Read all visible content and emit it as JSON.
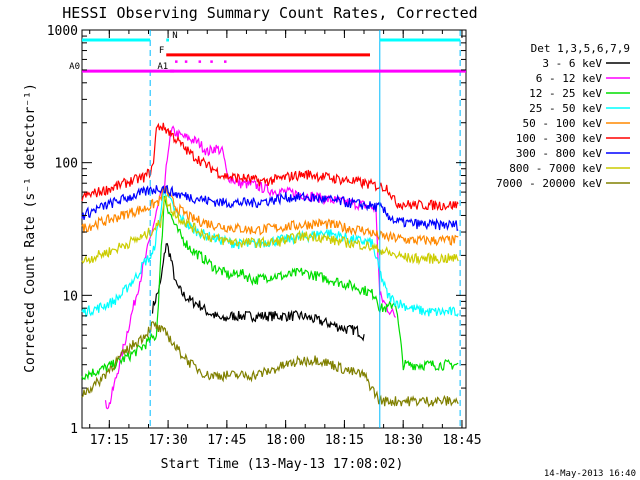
{
  "chart_data": {
    "type": "line",
    "title": "HESSI Observing Summary Count Rates, Corrected",
    "xlabel": "Start Time (13-May-13 17:08:02)",
    "ylabel": "Corrected Count Rate (s⁻¹ detector⁻¹)",
    "y_scale": "log",
    "ylim": [
      1,
      1000
    ],
    "xlim_minutes_from_start": [
      0,
      98
    ],
    "x_ticks": [
      {
        "label": "17:15",
        "t": 6.97
      },
      {
        "label": "17:30",
        "t": 21.97
      },
      {
        "label": "17:45",
        "t": 36.97
      },
      {
        "label": "18:00",
        "t": 51.97
      },
      {
        "label": "18:15",
        "t": 66.97
      },
      {
        "label": "18:30",
        "t": 81.97
      },
      {
        "label": "18:45",
        "t": 96.97
      }
    ],
    "y_ticks": [
      {
        "label": "1",
        "v": 1
      },
      {
        "label": "10",
        "v": 10
      },
      {
        "label": "100",
        "v": 100
      },
      {
        "label": "1000",
        "v": 1000
      }
    ],
    "legend_title": "Det 1,3,5,6,7,9",
    "legend_position": "right",
    "series": [
      {
        "name": "3 - 6 keV",
        "color": "#000000",
        "points": [
          [
            17,
            null
          ],
          [
            18,
            8
          ],
          [
            20,
            12
          ],
          [
            21.5,
            25
          ],
          [
            22.5,
            20
          ],
          [
            24,
            12
          ],
          [
            26,
            10
          ],
          [
            28,
            9
          ],
          [
            30,
            8.5
          ],
          [
            32,
            7.5
          ],
          [
            34,
            7
          ],
          [
            36,
            6.5
          ],
          [
            38,
            7
          ],
          [
            40,
            7
          ],
          [
            44,
            7
          ],
          [
            48,
            7
          ],
          [
            52,
            7
          ],
          [
            56,
            7
          ],
          [
            60,
            6.5
          ],
          [
            64,
            6
          ],
          [
            68,
            5.5
          ],
          [
            70,
            5.5
          ],
          [
            72,
            5
          ]
        ]
      },
      {
        "name": "6 - 12 keV",
        "color": "#ff00ff",
        "points": [
          [
            6,
            1.5
          ],
          [
            7,
            1.5
          ],
          [
            20,
            55
          ],
          [
            21,
            60
          ],
          [
            22,
            130
          ],
          [
            23,
            175
          ],
          [
            25,
            160
          ],
          [
            28,
            150
          ],
          [
            30,
            140
          ],
          [
            32,
            120
          ],
          [
            34,
            130
          ],
          [
            36,
            120
          ],
          [
            37,
            80
          ],
          [
            40,
            70
          ],
          [
            44,
            68
          ],
          [
            48,
            62
          ],
          [
            52,
            60
          ],
          [
            56,
            58
          ],
          [
            60,
            55
          ],
          [
            64,
            52
          ],
          [
            68,
            50
          ],
          [
            72,
            48
          ],
          [
            75,
            45
          ],
          [
            76,
            10
          ],
          [
            78,
            8
          ],
          [
            80,
            7
          ]
        ]
      },
      {
        "name": "12 - 25 keV",
        "color": "#00dd00",
        "points": [
          [
            0,
            2.5
          ],
          [
            4,
            2.7
          ],
          [
            8,
            3
          ],
          [
            12,
            3.5
          ],
          [
            15,
            4
          ],
          [
            17,
            4.5
          ],
          [
            19,
            5
          ],
          [
            21,
            55
          ],
          [
            22,
            45
          ],
          [
            24,
            32
          ],
          [
            26,
            26
          ],
          [
            28,
            22
          ],
          [
            30,
            20
          ],
          [
            32,
            18
          ],
          [
            34,
            16
          ],
          [
            36,
            15
          ],
          [
            38,
            14
          ],
          [
            40,
            15
          ],
          [
            44,
            13
          ],
          [
            48,
            14
          ],
          [
            52,
            14
          ],
          [
            56,
            15
          ],
          [
            60,
            14
          ],
          [
            64,
            13
          ],
          [
            68,
            12
          ],
          [
            72,
            11
          ],
          [
            75,
            10
          ],
          [
            76,
            8
          ],
          [
            78,
            8
          ],
          [
            80,
            9
          ],
          [
            82,
            3
          ],
          [
            88,
            3
          ],
          [
            96,
            3
          ]
        ]
      },
      {
        "name": "25 - 50 keV",
        "color": "#00ffff",
        "points": [
          [
            0,
            7.5
          ],
          [
            4,
            8
          ],
          [
            8,
            9
          ],
          [
            10,
            10
          ],
          [
            12,
            12
          ],
          [
            14,
            14
          ],
          [
            16,
            18
          ],
          [
            18,
            20
          ],
          [
            20,
            40
          ],
          [
            21,
            65
          ],
          [
            22,
            55
          ],
          [
            24,
            42
          ],
          [
            26,
            36
          ],
          [
            28,
            32
          ],
          [
            30,
            30
          ],
          [
            32,
            28
          ],
          [
            34,
            27
          ],
          [
            36,
            26
          ],
          [
            38,
            25
          ],
          [
            42,
            24
          ],
          [
            46,
            25
          ],
          [
            50,
            26
          ],
          [
            54,
            27
          ],
          [
            58,
            28
          ],
          [
            62,
            30
          ],
          [
            66,
            28
          ],
          [
            70,
            26
          ],
          [
            74,
            25
          ],
          [
            76,
            15
          ],
          [
            78,
            10
          ],
          [
            80,
            9
          ],
          [
            84,
            8
          ],
          [
            88,
            7.5
          ],
          [
            92,
            7.5
          ],
          [
            96,
            7.5
          ]
        ]
      },
      {
        "name": "50 - 100 keV",
        "color": "#ff8800",
        "points": [
          [
            0,
            32
          ],
          [
            4,
            35
          ],
          [
            8,
            38
          ],
          [
            12,
            42
          ],
          [
            16,
            45
          ],
          [
            20,
            52
          ],
          [
            21,
            65
          ],
          [
            22,
            58
          ],
          [
            24,
            46
          ],
          [
            26,
            42
          ],
          [
            28,
            38
          ],
          [
            32,
            35
          ],
          [
            36,
            33
          ],
          [
            40,
            32
          ],
          [
            44,
            31
          ],
          [
            48,
            32
          ],
          [
            52,
            33
          ],
          [
            56,
            34
          ],
          [
            60,
            35
          ],
          [
            64,
            34
          ],
          [
            68,
            32
          ],
          [
            72,
            31
          ],
          [
            76,
            28
          ],
          [
            80,
            27
          ],
          [
            84,
            26
          ],
          [
            88,
            26
          ],
          [
            92,
            26
          ],
          [
            96,
            26
          ]
        ]
      },
      {
        "name": "100 - 300 keV",
        "color": "#ff0000",
        "points": [
          [
            0,
            55
          ],
          [
            4,
            60
          ],
          [
            8,
            65
          ],
          [
            12,
            72
          ],
          [
            16,
            78
          ],
          [
            18,
            90
          ],
          [
            19,
            180
          ],
          [
            20,
            190
          ],
          [
            22,
            175
          ],
          [
            24,
            150
          ],
          [
            26,
            130
          ],
          [
            28,
            115
          ],
          [
            30,
            105
          ],
          [
            32,
            95
          ],
          [
            34,
            88
          ],
          [
            36,
            80
          ],
          [
            38,
            78
          ],
          [
            42,
            76
          ],
          [
            46,
            72
          ],
          [
            50,
            75
          ],
          [
            54,
            80
          ],
          [
            58,
            82
          ],
          [
            62,
            78
          ],
          [
            66,
            75
          ],
          [
            70,
            72
          ],
          [
            74,
            68
          ],
          [
            78,
            65
          ],
          [
            80,
            50
          ],
          [
            84,
            48
          ],
          [
            88,
            48
          ],
          [
            92,
            48
          ],
          [
            96,
            48
          ]
        ]
      },
      {
        "name": "300 - 800 keV",
        "color": "#0000ff",
        "points": [
          [
            0,
            40
          ],
          [
            4,
            45
          ],
          [
            8,
            50
          ],
          [
            12,
            55
          ],
          [
            16,
            60
          ],
          [
            20,
            65
          ],
          [
            22,
            62
          ],
          [
            24,
            58
          ],
          [
            28,
            55
          ],
          [
            32,
            52
          ],
          [
            36,
            50
          ],
          [
            40,
            50
          ],
          [
            44,
            50
          ],
          [
            48,
            52
          ],
          [
            52,
            55
          ],
          [
            56,
            55
          ],
          [
            60,
            54
          ],
          [
            64,
            52
          ],
          [
            68,
            50
          ],
          [
            72,
            48
          ],
          [
            76,
            46
          ],
          [
            80,
            36
          ],
          [
            84,
            35
          ],
          [
            88,
            34
          ],
          [
            92,
            34
          ],
          [
            96,
            34
          ]
        ]
      },
      {
        "name": "800 - 7000 keV",
        "color": "#cccc00",
        "points": [
          [
            0,
            18
          ],
          [
            4,
            20
          ],
          [
            8,
            22
          ],
          [
            12,
            25
          ],
          [
            16,
            28
          ],
          [
            20,
            35
          ],
          [
            21,
            55
          ],
          [
            22,
            48
          ],
          [
            24,
            40
          ],
          [
            28,
            33
          ],
          [
            32,
            28
          ],
          [
            36,
            26
          ],
          [
            40,
            25
          ],
          [
            44,
            25
          ],
          [
            48,
            25
          ],
          [
            52,
            26
          ],
          [
            56,
            28
          ],
          [
            60,
            28
          ],
          [
            64,
            26
          ],
          [
            68,
            25
          ],
          [
            72,
            24
          ],
          [
            76,
            22
          ],
          [
            80,
            20
          ],
          [
            84,
            19
          ],
          [
            88,
            19
          ],
          [
            92,
            19
          ],
          [
            96,
            19
          ]
        ]
      },
      {
        "name": "7000 - 20000 keV",
        "color": "#808000",
        "points": [
          [
            0,
            1.8
          ],
          [
            4,
            2.2
          ],
          [
            8,
            3
          ],
          [
            12,
            4
          ],
          [
            16,
            5
          ],
          [
            18,
            6
          ],
          [
            20,
            5.5
          ],
          [
            22,
            5
          ],
          [
            24,
            4
          ],
          [
            26,
            3.5
          ],
          [
            28,
            3
          ],
          [
            32,
            2.5
          ],
          [
            36,
            2.5
          ],
          [
            40,
            2.5
          ],
          [
            44,
            2.5
          ],
          [
            48,
            2.7
          ],
          [
            52,
            3
          ],
          [
            56,
            3.2
          ],
          [
            60,
            3.3
          ],
          [
            64,
            3
          ],
          [
            68,
            2.7
          ],
          [
            72,
            2.5
          ],
          [
            76,
            1.6
          ],
          [
            80,
            1.6
          ],
          [
            84,
            1.6
          ],
          [
            88,
            1.6
          ],
          [
            92,
            1.6
          ],
          [
            96,
            1.6
          ]
        ]
      }
    ],
    "flags": [
      {
        "label": "N",
        "color": "#00ffff",
        "start": 21.5,
        "end": 22.2,
        "level": "top"
      },
      {
        "label": "F",
        "color": "#ff0000",
        "start": 21.5,
        "end": 73.5,
        "level": 650
      },
      {
        "label": "A0",
        "color": "#ff00ff",
        "start": 0,
        "end": 98,
        "level": 490
      },
      {
        "label": "A1",
        "color": "#ff00ff",
        "start": 22.5,
        "end": 23.5,
        "level": 490
      }
    ],
    "vertical_markers": [
      {
        "t": 17.4,
        "style": "dashed",
        "color": "#00bbff"
      },
      {
        "t": 76.0,
        "style": "solid",
        "color": "#00bbff"
      },
      {
        "t": 96.5,
        "style": "dashed",
        "color": "#00bbff"
      }
    ],
    "saa_bars": [
      {
        "color": "#00ffff",
        "start": 0,
        "end": 17.4,
        "level": "top"
      },
      {
        "color": "#00ffff",
        "start": 76.0,
        "end": 96.5,
        "level": "top"
      }
    ]
  },
  "footer_timestamp": "14-May-2013 16:40"
}
